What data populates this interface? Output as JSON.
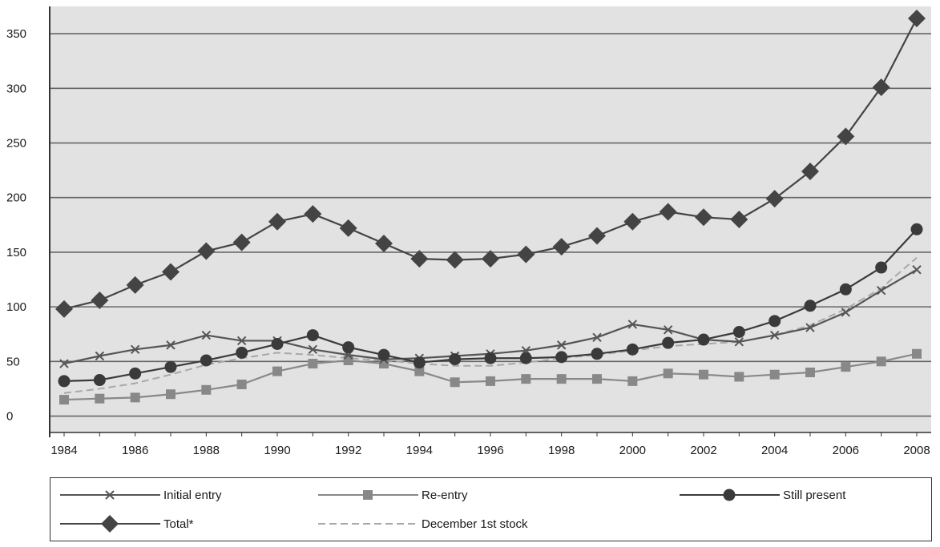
{
  "chart_data": {
    "type": "line",
    "title": "",
    "xlabel": "",
    "ylabel": "",
    "x": [
      1984,
      1985,
      1986,
      1987,
      1988,
      1989,
      1990,
      1991,
      1992,
      1993,
      1994,
      1995,
      1996,
      1997,
      1998,
      1999,
      2000,
      2001,
      2002,
      2003,
      2004,
      2005,
      2006,
      2007,
      2008
    ],
    "x_tick_labels": [
      "1984",
      "1986",
      "1988",
      "1990",
      "1992",
      "1994",
      "1996",
      "1998",
      "2000",
      "2002",
      "2004",
      "2006",
      "2008"
    ],
    "y_ticks": [
      0,
      50,
      100,
      150,
      200,
      250,
      300,
      350
    ],
    "ylim": [
      -15,
      375
    ],
    "grid": true,
    "legend_position": "bottom",
    "series": [
      {
        "name": "Initial entry",
        "marker": "x",
        "color": "#555555",
        "values": [
          48,
          55,
          61,
          65,
          74,
          69,
          69,
          61,
          56,
          52,
          53,
          55,
          57,
          60,
          65,
          72,
          84,
          79,
          70,
          68,
          74,
          81,
          95,
          115,
          134
        ]
      },
      {
        "name": "Re-entry",
        "marker": "square",
        "color": "#888888",
        "values": [
          15,
          16,
          17,
          20,
          24,
          29,
          41,
          48,
          51,
          48,
          41,
          31,
          32,
          34,
          34,
          34,
          32,
          39,
          38,
          36,
          38,
          40,
          45,
          50,
          57
        ]
      },
      {
        "name": "Still present",
        "marker": "circle",
        "color": "#3a3a3a",
        "values": [
          32,
          33,
          39,
          45,
          51,
          58,
          66,
          74,
          63,
          56,
          49,
          52,
          53,
          53,
          54,
          57,
          61,
          67,
          70,
          77,
          87,
          101,
          116,
          136,
          171
        ]
      },
      {
        "name": "Total*",
        "marker": "diamond",
        "color": "#444444",
        "values": [
          98,
          106,
          120,
          132,
          151,
          159,
          178,
          185,
          172,
          158,
          144,
          143,
          144,
          148,
          155,
          165,
          178,
          187,
          182,
          180,
          199,
          224,
          256,
          301,
          364
        ]
      },
      {
        "name": "December 1st stock",
        "marker": "none",
        "dashed": true,
        "color": "#a8a8a8",
        "values": [
          21,
          25,
          30,
          38,
          47,
          53,
          58,
          56,
          53,
          51,
          48,
          46,
          46,
          49,
          53,
          56,
          60,
          64,
          66,
          68,
          74,
          83,
          98,
          117,
          145
        ]
      }
    ]
  },
  "legend": {
    "items": [
      {
        "label": "Initial entry"
      },
      {
        "label": "Re-entry"
      },
      {
        "label": "Still present"
      },
      {
        "label": "Total*"
      },
      {
        "label": "December 1st stock"
      }
    ]
  },
  "colors": {
    "plot_background": "#e2e2e2",
    "gridline": "#666666",
    "axis": "#333333"
  }
}
